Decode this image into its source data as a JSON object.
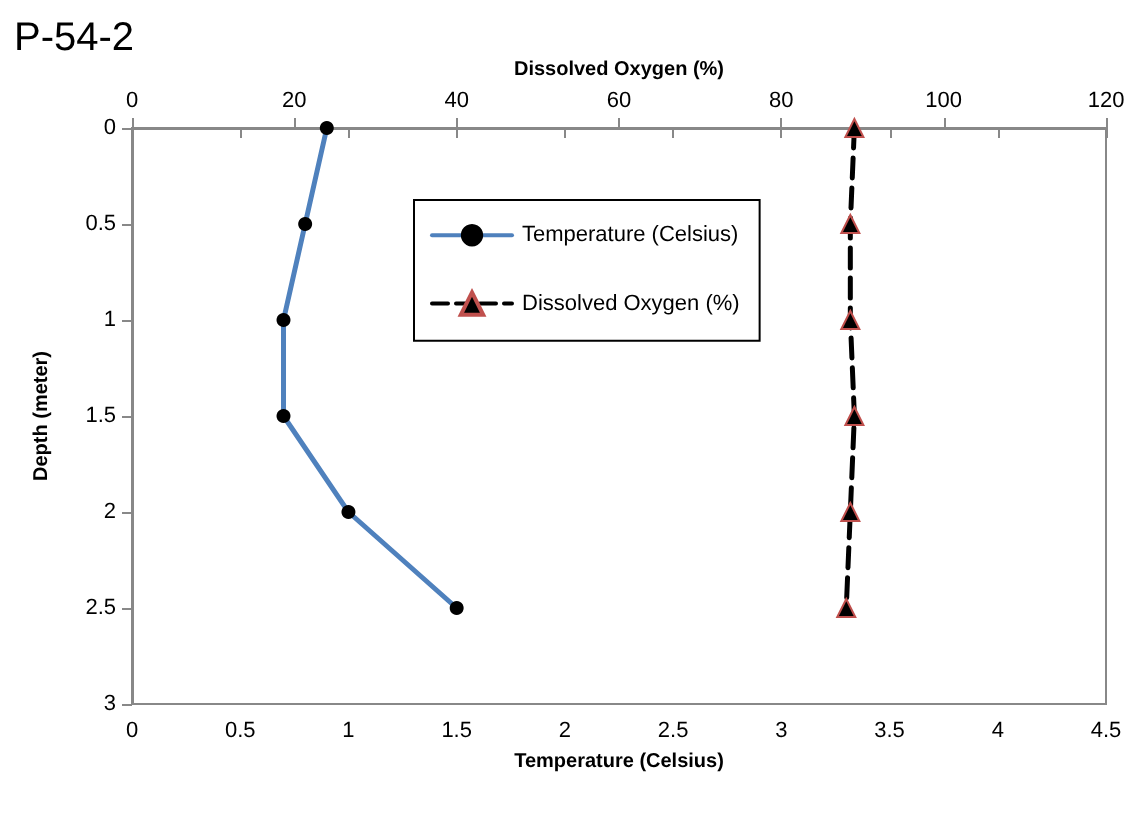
{
  "chart_data": {
    "type": "line",
    "title": "P-54-2",
    "xlabel": "Temperature (Celsius)",
    "x2label": "Dissolved Oxygen (%)",
    "ylabel": "Depth (meter)",
    "xlim": [
      0,
      4.5
    ],
    "xticks": [
      0,
      0.5,
      1,
      1.5,
      2,
      2.5,
      3,
      3.5,
      4,
      4.5
    ],
    "x2lim": [
      0,
      120
    ],
    "x2ticks": [
      0,
      20,
      40,
      60,
      80,
      100,
      120
    ],
    "ylim": [
      3,
      0
    ],
    "yticks": [
      0,
      0.5,
      1,
      1.5,
      2,
      2.5,
      3
    ],
    "grid": false,
    "legend": "top",
    "series": [
      {
        "name": "Temperature (Celsius)",
        "color": "#4f81bd",
        "marker": "circle",
        "line_style": "solid",
        "x": [
          0.9,
          0.8,
          0.7,
          0.7,
          1.0,
          1.5
        ],
        "values": [
          0,
          0.5,
          1,
          1.5,
          2,
          2.5
        ]
      },
      {
        "name": "Dissolved Oxygen (%)",
        "color": "#000000",
        "marker": "triangle",
        "line_style": "dashed",
        "axis": "x2",
        "x": [
          89,
          88.5,
          88.5,
          89,
          88.5,
          88
        ],
        "values": [
          0,
          0.5,
          1,
          1.5,
          2,
          2.5
        ]
      }
    ]
  }
}
